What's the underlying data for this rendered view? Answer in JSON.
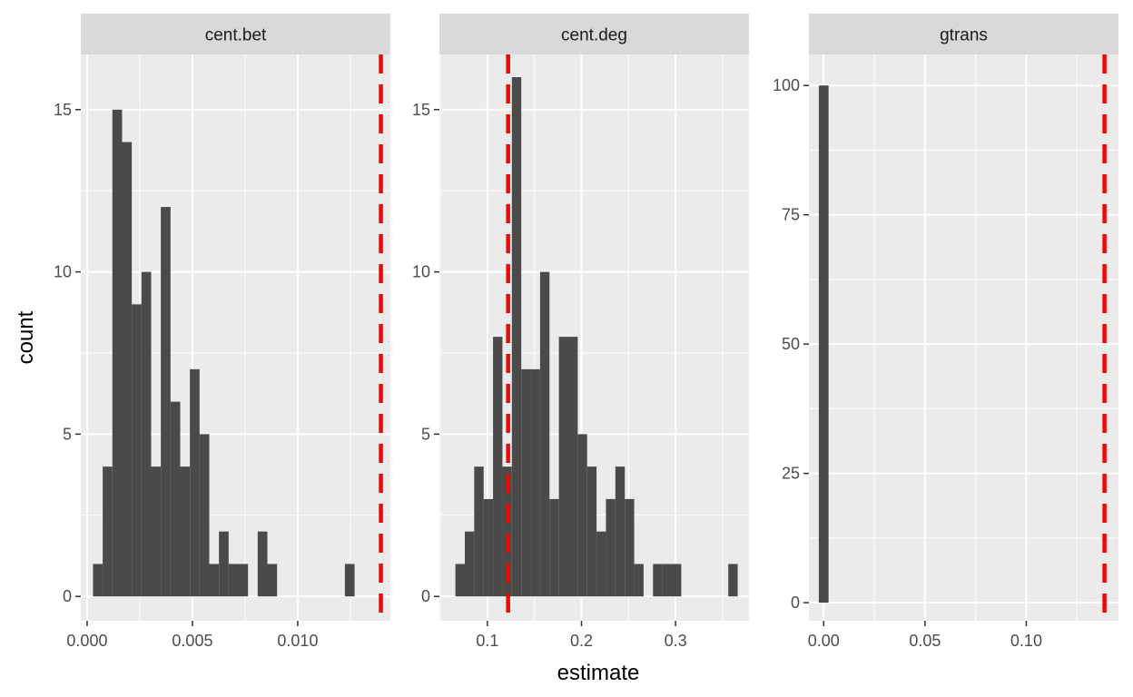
{
  "chart_data": {
    "type": "bar",
    "xlabel": "estimate",
    "ylabel": "count",
    "colors": {
      "panel_bg": "#ebebeb",
      "strip_bg": "#d9d9d9",
      "bar": "#4a4a4a",
      "reference_line": "#ff0000",
      "grid": "#ffffff"
    },
    "panels": [
      {
        "strip": "cent.bet",
        "xlim": [
          -0.0003,
          0.0144
        ],
        "ylim": [
          -0.75,
          16.7
        ],
        "x_ticks": [
          0.0,
          0.005,
          0.01
        ],
        "x_tick_labels": [
          "0.000",
          "0.005",
          "0.010"
        ],
        "y_ticks": [
          0,
          5,
          10,
          15
        ],
        "y_tick_labels": [
          "0",
          "5",
          "10",
          "15"
        ],
        "bin_width": 0.00046,
        "bins": [
          {
            "x": 0.00051,
            "count": 1
          },
          {
            "x": 0.00097,
            "count": 4
          },
          {
            "x": 0.00143,
            "count": 15
          },
          {
            "x": 0.00189,
            "count": 14
          },
          {
            "x": 0.00235,
            "count": 9
          },
          {
            "x": 0.00281,
            "count": 10
          },
          {
            "x": 0.00327,
            "count": 4
          },
          {
            "x": 0.00373,
            "count": 12
          },
          {
            "x": 0.00419,
            "count": 6
          },
          {
            "x": 0.00465,
            "count": 4
          },
          {
            "x": 0.00511,
            "count": 7
          },
          {
            "x": 0.00557,
            "count": 5
          },
          {
            "x": 0.00603,
            "count": 1
          },
          {
            "x": 0.00649,
            "count": 2
          },
          {
            "x": 0.00695,
            "count": 1
          },
          {
            "x": 0.00741,
            "count": 1
          },
          {
            "x": 0.00833,
            "count": 2
          },
          {
            "x": 0.00879,
            "count": 1
          },
          {
            "x": 0.01247,
            "count": 1
          }
        ],
        "reference_line": 0.01395
      },
      {
        "strip": "cent.deg",
        "xlim": [
          0.049,
          0.378
        ],
        "ylim": [
          -0.75,
          16.7
        ],
        "x_ticks": [
          0.1,
          0.2,
          0.3
        ],
        "x_tick_labels": [
          "0.1",
          "0.2",
          "0.3"
        ],
        "y_ticks": [
          0,
          5,
          10,
          15
        ],
        "y_tick_labels": [
          "0",
          "5",
          "10",
          "15"
        ],
        "bin_width": 0.01,
        "bins": [
          {
            "x": 0.071,
            "count": 1
          },
          {
            "x": 0.081,
            "count": 2
          },
          {
            "x": 0.091,
            "count": 4
          },
          {
            "x": 0.101,
            "count": 3
          },
          {
            "x": 0.111,
            "count": 8
          },
          {
            "x": 0.121,
            "count": 4
          },
          {
            "x": 0.131,
            "count": 16
          },
          {
            "x": 0.141,
            "count": 7
          },
          {
            "x": 0.151,
            "count": 7
          },
          {
            "x": 0.161,
            "count": 10
          },
          {
            "x": 0.171,
            "count": 3
          },
          {
            "x": 0.181,
            "count": 8
          },
          {
            "x": 0.191,
            "count": 8
          },
          {
            "x": 0.201,
            "count": 5
          },
          {
            "x": 0.211,
            "count": 4
          },
          {
            "x": 0.221,
            "count": 2
          },
          {
            "x": 0.231,
            "count": 3
          },
          {
            "x": 0.241,
            "count": 4
          },
          {
            "x": 0.251,
            "count": 3
          },
          {
            "x": 0.261,
            "count": 1
          },
          {
            "x": 0.281,
            "count": 1
          },
          {
            "x": 0.291,
            "count": 1
          },
          {
            "x": 0.301,
            "count": 1
          },
          {
            "x": 0.361,
            "count": 1
          }
        ],
        "reference_line": 0.122
      },
      {
        "strip": "gtrans",
        "xlim": [
          -0.0073,
          0.1455
        ],
        "ylim": [
          -3.5,
          106
        ],
        "x_ticks": [
          0.0,
          0.05,
          0.1
        ],
        "x_tick_labels": [
          "0.00",
          "0.05",
          "0.10"
        ],
        "y_ticks": [
          0,
          25,
          50,
          75,
          100
        ],
        "y_tick_labels": [
          "0",
          "25",
          "50",
          "75",
          "100"
        ],
        "bin_width": 0.0048,
        "bins": [
          {
            "x": 0.0,
            "count": 100
          }
        ],
        "reference_line": 0.1386
      }
    ]
  }
}
